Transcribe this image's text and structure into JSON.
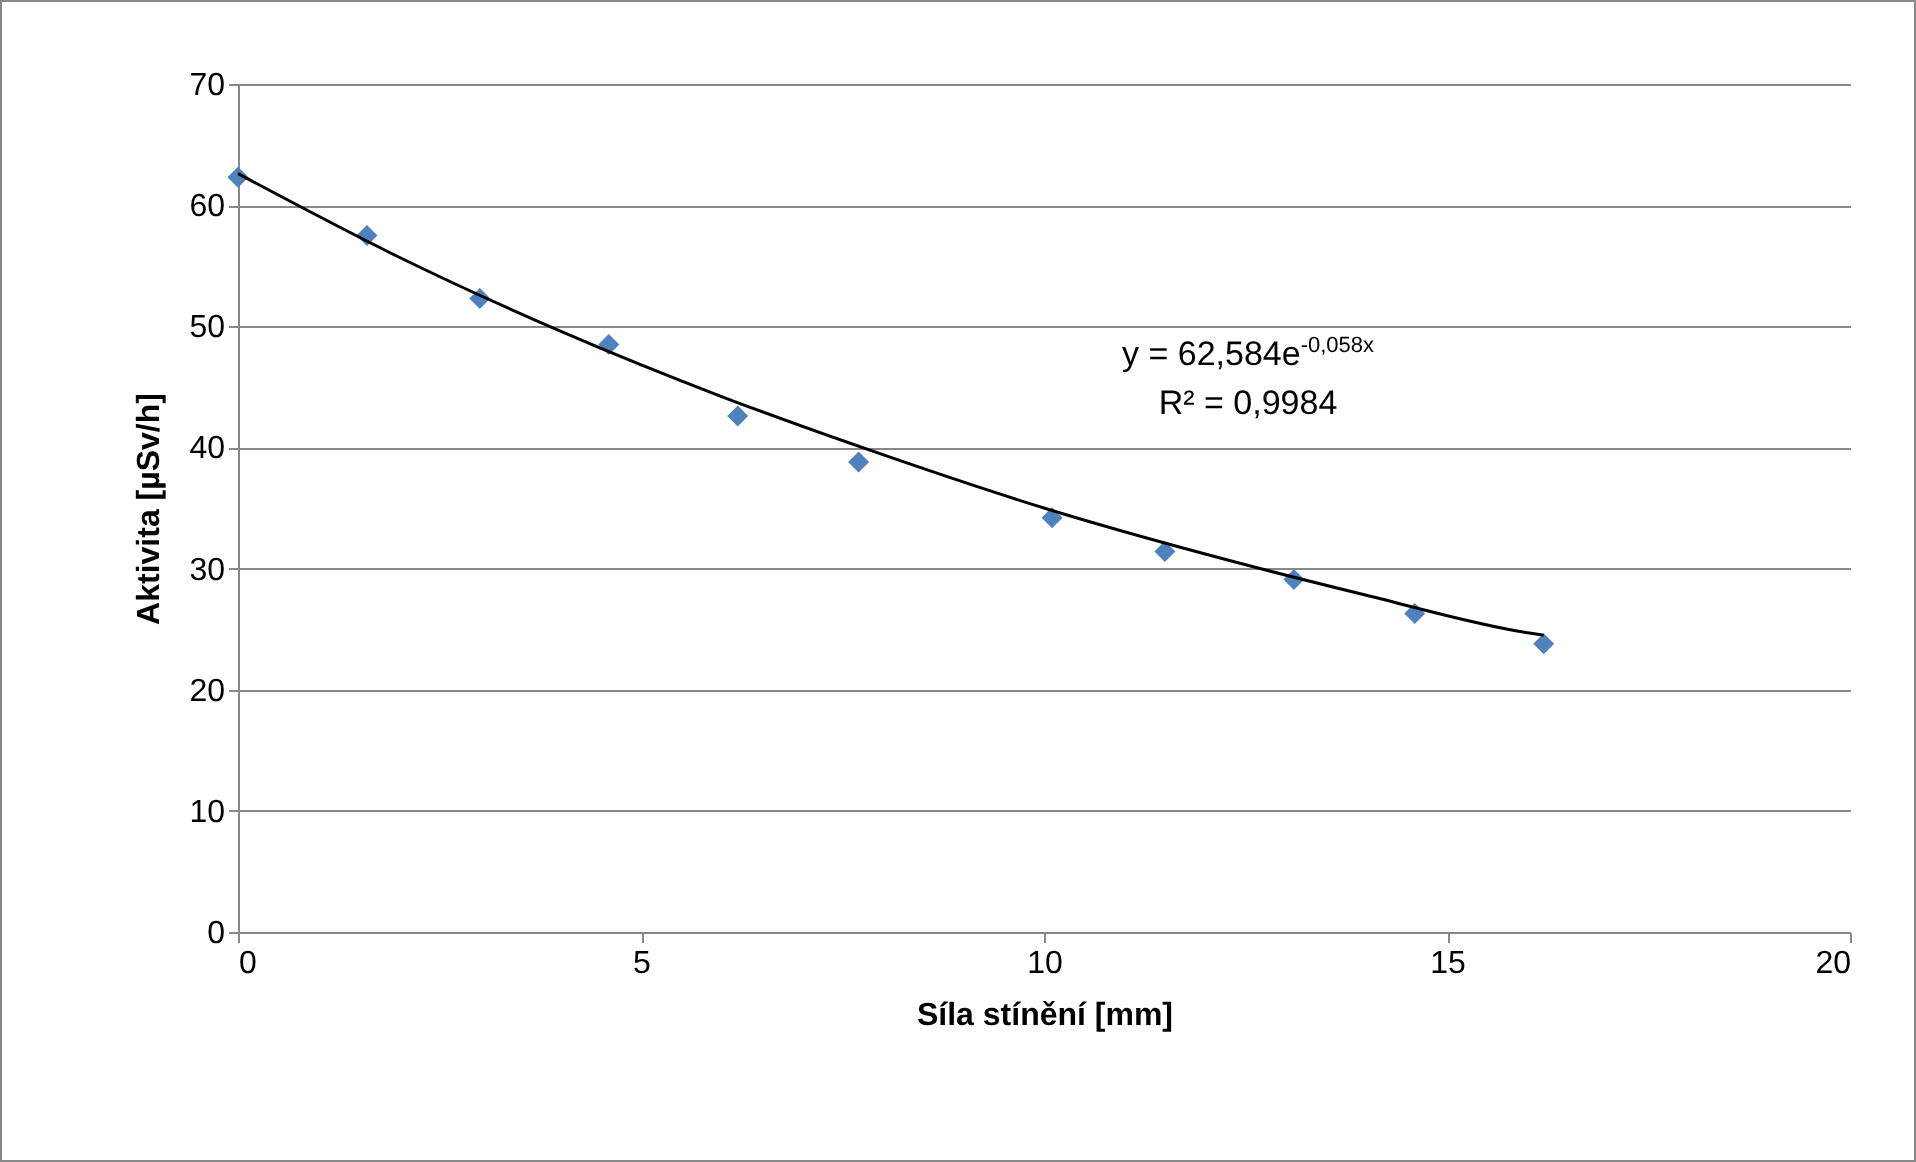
{
  "chart_data": {
    "type": "scatter",
    "xlabel": "Síla stínění [mm]",
    "ylabel": "Aktivita [µSv/h]",
    "xlim": [
      0,
      20
    ],
    "xticks": [
      0,
      5,
      10,
      15,
      20
    ],
    "ylim": [
      0,
      70
    ],
    "yticks": [
      0,
      10,
      20,
      30,
      40,
      50,
      60,
      70
    ],
    "grid": "y",
    "marker": "diamond",
    "series": [
      {
        "color": "#4f81bd",
        "x": [
          0,
          1.6,
          3.0,
          4.6,
          6.2,
          7.7,
          10.1,
          11.5,
          13.1,
          14.6,
          16.2
        ],
        "values": [
          62.3,
          57.5,
          52.3,
          48.5,
          42.6,
          38.8,
          34.2,
          31.4,
          29.1,
          26.3,
          23.8
        ]
      },
      {
        "type": "line",
        "color": "#000000",
        "marker": "none",
        "x": [
          0,
          2,
          4,
          6,
          8,
          10,
          12,
          14,
          16,
          16.2
        ],
        "values": [
          62.6,
          55.7,
          49.6,
          44.2,
          39.4,
          35.0,
          31.2,
          27.8,
          24.7,
          24.5
        ]
      }
    ],
    "annotations": [
      "y = 62,584e$^{-0,058x}$",
      "R² = 0,9984"
    ]
  }
}
